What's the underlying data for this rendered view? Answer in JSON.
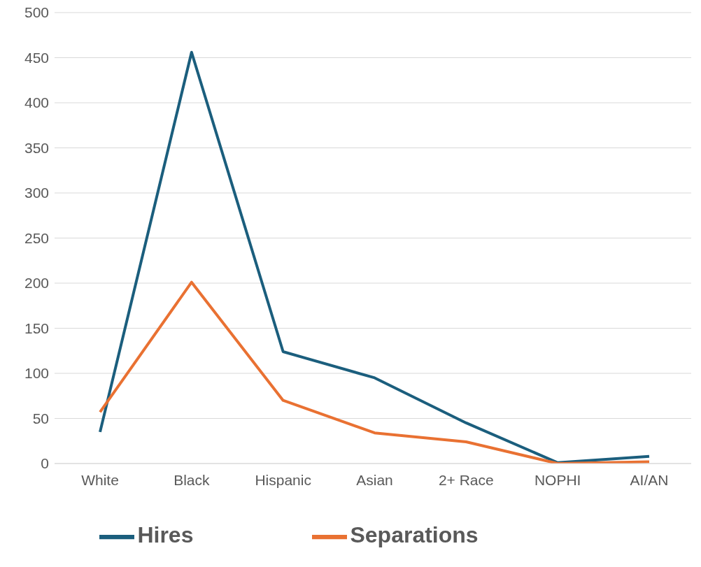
{
  "chart_data": {
    "type": "line",
    "categories": [
      "White",
      "Black",
      "Hispanic",
      "Asian",
      "2+ Race",
      "NOPHI",
      "AI/AN"
    ],
    "series": [
      {
        "name": "Hires",
        "color": "#1b5e7d",
        "values": [
          35,
          456,
          124,
          95,
          45,
          1,
          8
        ]
      },
      {
        "name": "Separations",
        "color": "#e97132",
        "values": [
          57,
          201,
          70,
          34,
          24,
          0,
          2
        ]
      }
    ],
    "ylim": [
      0,
      500
    ],
    "yticks": [
      0,
      50,
      100,
      150,
      200,
      250,
      300,
      350,
      400,
      450,
      500
    ],
    "grid": "y",
    "legend": "bottom",
    "marker": "none",
    "line_style": "solid"
  }
}
